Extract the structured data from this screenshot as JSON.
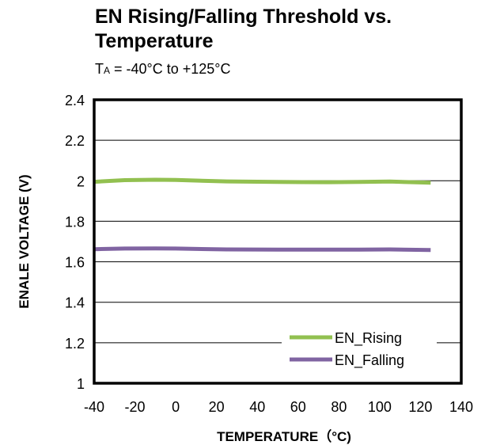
{
  "chart_data": {
    "type": "line",
    "title": "EN Rising/Falling Threshold vs. Temperature",
    "subtitle": {
      "prefix": "T",
      "subscript": "A",
      "text": " = -40°C to +125°C"
    },
    "xlabel": "TEMPERATURE（°C)",
    "ylabel": "ENALE VOLTAGE (V)",
    "xlim": [
      -40,
      140
    ],
    "ylim": [
      1,
      2.4
    ],
    "xticks": [
      -40,
      -20,
      0,
      20,
      40,
      60,
      80,
      100,
      120,
      140
    ],
    "yticks": [
      1,
      1.2,
      1.4,
      1.6,
      1.8,
      2,
      2.2,
      2.4
    ],
    "xtick_labels": [
      "-40",
      "-20",
      "0",
      "20",
      "40",
      "60",
      "80",
      "100",
      "120",
      "140"
    ],
    "ytick_labels": [
      "1",
      "1.2",
      "1.4",
      "1.6",
      "1.8",
      "2",
      "2.2",
      "2.4"
    ],
    "grid": "horizontal",
    "legend_position": "bottom-right",
    "series": [
      {
        "name": "EN_Rising",
        "color": "#92c050",
        "x": [
          -40,
          -25,
          -10,
          0,
          25,
          50,
          75,
          90,
          105,
          125
        ],
        "y": [
          1.995,
          2.003,
          2.005,
          2.004,
          1.997,
          1.994,
          1.993,
          1.994,
          1.996,
          1.99
        ]
      },
      {
        "name": "EN_Falling",
        "color": "#8064a2",
        "x": [
          -40,
          -25,
          -10,
          0,
          25,
          50,
          75,
          90,
          105,
          125
        ],
        "y": [
          1.662,
          1.665,
          1.666,
          1.665,
          1.661,
          1.66,
          1.66,
          1.66,
          1.661,
          1.658
        ]
      }
    ]
  }
}
